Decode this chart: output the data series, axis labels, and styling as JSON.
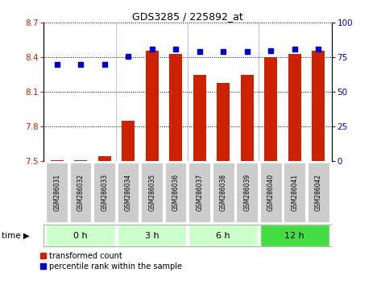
{
  "title": "GDS3285 / 225892_at",
  "samples": [
    "GSM286031",
    "GSM286032",
    "GSM286033",
    "GSM286034",
    "GSM286035",
    "GSM286036",
    "GSM286037",
    "GSM286038",
    "GSM286039",
    "GSM286040",
    "GSM286041",
    "GSM286042"
  ],
  "transformed_count": [
    7.51,
    7.51,
    7.54,
    7.85,
    8.46,
    8.43,
    8.25,
    8.18,
    8.25,
    8.4,
    8.43,
    8.46
  ],
  "percentile_rank": [
    70,
    70,
    70,
    76,
    81,
    81,
    79,
    79,
    79,
    80,
    81,
    81
  ],
  "ylim_left": [
    7.5,
    8.7
  ],
  "ylim_right": [
    0,
    100
  ],
  "yticks_left": [
    7.5,
    7.8,
    8.1,
    8.4,
    8.7
  ],
  "yticks_right": [
    0,
    25,
    50,
    75,
    100
  ],
  "bar_color": "#cc2200",
  "dot_color": "#0000cc",
  "bar_bottom": 7.5,
  "background_color": "#ffffff",
  "tick_label_color_left": "#cc2200",
  "tick_label_color_right": "#0000cc",
  "grid_color": "#000000",
  "sample_bg_color": "#cccccc",
  "time_label": "time",
  "legend_items": [
    "transformed count",
    "percentile rank within the sample"
  ],
  "group_ranges": [
    {
      "start": 0,
      "end": 2,
      "label": "0 h",
      "color": "#ccffcc"
    },
    {
      "start": 3,
      "end": 5,
      "label": "3 h",
      "color": "#ccffcc"
    },
    {
      "start": 6,
      "end": 8,
      "label": "6 h",
      "color": "#ccffcc"
    },
    {
      "start": 9,
      "end": 11,
      "label": "12 h",
      "color": "#44dd44"
    }
  ]
}
